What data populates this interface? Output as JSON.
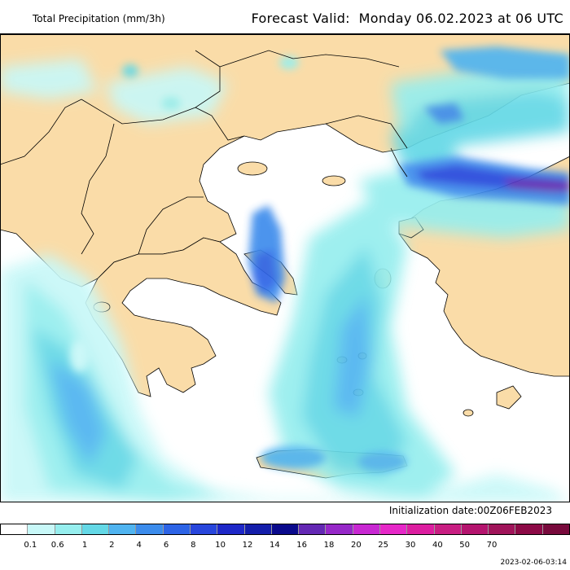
{
  "header": {
    "title": "Total Precipitation (mm/3h)",
    "forecast_label": "Forecast Valid:",
    "forecast_value": "Monday 06.02.2023 at 06 UTC"
  },
  "footer": {
    "initialization": "Initialization date:00Z06FEB2023",
    "timestamp": "2023-02-06-03:14"
  },
  "legend": {
    "colors": [
      "#ffffff",
      "#c8f8f8",
      "#96eeee",
      "#64d8e6",
      "#50b4f0",
      "#3c8cec",
      "#2d64e6",
      "#2846dc",
      "#1e28c8",
      "#141eaa",
      "#0a0a8c",
      "#6428b4",
      "#9628c8",
      "#c828d2",
      "#e628c8",
      "#dc1ea0",
      "#c81e82",
      "#b4146e",
      "#a0145a",
      "#8c0a46",
      "#780a3c"
    ],
    "labels": [
      "0.1",
      "0.6",
      "1",
      "2",
      "4",
      "6",
      "8",
      "10",
      "12",
      "14",
      "16",
      "18",
      "20",
      "25",
      "30",
      "40",
      "50",
      "70"
    ]
  },
  "palette": {
    "land": "#fadca8",
    "sea": "#ffffff"
  }
}
